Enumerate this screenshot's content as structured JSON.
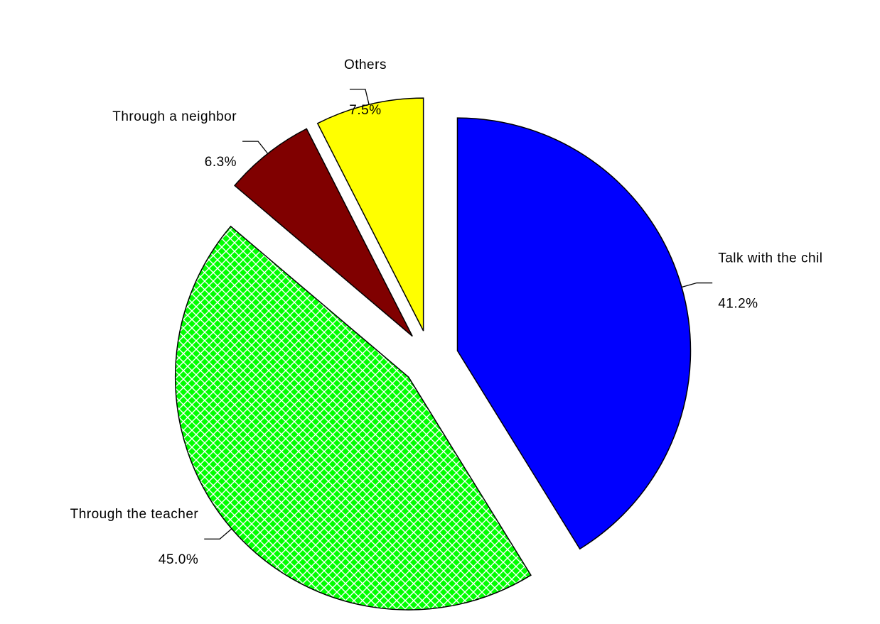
{
  "chart_data": {
    "type": "pie",
    "categories": [
      "Talk with the chil",
      "Through the teacher",
      "Through a neighbor",
      "Others"
    ],
    "values": [
      41.2,
      45.0,
      6.3,
      7.5
    ],
    "value_labels": [
      "41.2%",
      "45.0%",
      "6.3%",
      "7.5%"
    ],
    "colors": [
      "#0000ff",
      "#00ff00",
      "#800000",
      "#ffff00"
    ],
    "patterns": [
      "solid",
      "crosshatch",
      "solid",
      "solid"
    ]
  }
}
